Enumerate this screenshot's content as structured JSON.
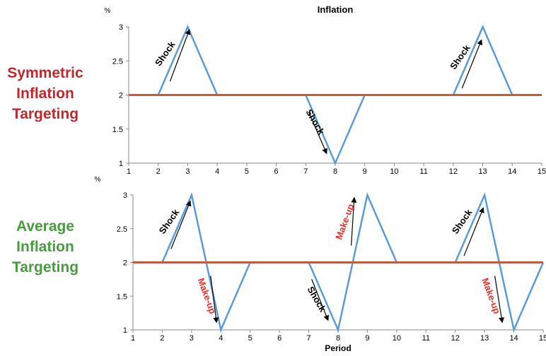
{
  "colors": {
    "actual": "#5b9bd5",
    "target": "#c55a3c",
    "axis": "#888888",
    "text": "#000000",
    "shock_text": "#000000",
    "makeup_text": "#e8302a",
    "symmetric_label": "#c0282d",
    "average_label": "#4a9a41"
  },
  "chart_data": [
    {
      "type": "line",
      "title": "Inflation",
      "side_label": [
        "Symmetric",
        "Inflation",
        "Targeting"
      ],
      "ylabel": "%",
      "xlabel": "",
      "xlim": [
        1,
        15
      ],
      "ylim": [
        1,
        3
      ],
      "x_ticks": [
        1,
        2,
        3,
        4,
        5,
        6,
        7,
        8,
        9,
        10,
        11,
        12,
        13,
        14,
        15
      ],
      "y_ticks": [
        "1",
        "1.5",
        "2",
        "2.5",
        "3"
      ],
      "series": [
        {
          "role": "actual",
          "x": [
            1,
            2,
            3,
            4,
            5,
            6,
            7,
            8,
            9,
            10,
            11,
            12,
            13,
            14,
            15
          ],
          "y": [
            2,
            2,
            3,
            2,
            2,
            2,
            2,
            1,
            2,
            2,
            2,
            2,
            3,
            2,
            2
          ]
        },
        {
          "role": "target",
          "x": [
            1,
            15
          ],
          "y": [
            2,
            2
          ]
        }
      ],
      "annotations": [
        {
          "text": "Shock",
          "kind": "shock",
          "x": 2.25,
          "y": 2.6,
          "rotate": -55,
          "arrow": {
            "x1": 2.4,
            "y1": 2.2,
            "x2": 3.05,
            "y2": 2.95
          }
        },
        {
          "text": "Shock",
          "kind": "shock",
          "x": 7.3,
          "y": 1.6,
          "rotate": 60,
          "arrow": {
            "x1": 7.1,
            "y1": 1.75,
            "x2": 7.7,
            "y2": 1.15
          }
        },
        {
          "text": "Shock",
          "kind": "shock",
          "x": 12.25,
          "y": 2.55,
          "rotate": -55,
          "arrow": {
            "x1": 12.3,
            "y1": 2.1,
            "x2": 12.95,
            "y2": 2.8
          }
        }
      ]
    },
    {
      "type": "line",
      "title": "",
      "side_label": [
        "Average",
        "Inflation",
        "Targeting"
      ],
      "ylabel": "%",
      "xlabel": "Period",
      "xlim": [
        1,
        15
      ],
      "ylim": [
        1,
        3
      ],
      "x_ticks": [
        1,
        2,
        3,
        4,
        5,
        6,
        7,
        8,
        9,
        10,
        11,
        12,
        13,
        14,
        15
      ],
      "y_ticks": [
        "1",
        "1.5",
        "2",
        "2.5",
        "3"
      ],
      "series": [
        {
          "role": "actual",
          "x": [
            1,
            2,
            3,
            4,
            5,
            6,
            7,
            8,
            9,
            10,
            11,
            12,
            13,
            14,
            15
          ],
          "y": [
            2,
            2,
            3,
            1,
            2,
            2,
            2,
            1,
            3,
            2,
            2,
            2,
            3,
            1,
            2
          ]
        },
        {
          "role": "target",
          "x": [
            1,
            15
          ],
          "y": [
            2,
            2
          ]
        }
      ],
      "annotations": [
        {
          "text": "Shock",
          "kind": "shock",
          "x": 2.25,
          "y": 2.6,
          "rotate": -55,
          "arrow": {
            "x1": 2.3,
            "y1": 2.2,
            "x2": 2.95,
            "y2": 2.9
          }
        },
        {
          "text": "Make-up",
          "kind": "makeup",
          "x": 3.5,
          "y": 1.5,
          "rotate": 70,
          "arrow": {
            "x1": 3.65,
            "y1": 1.8,
            "x2": 3.85,
            "y2": 1.12
          }
        },
        {
          "text": "Shock",
          "kind": "shock",
          "x": 7.25,
          "y": 1.45,
          "rotate": 60,
          "arrow": {
            "x1": 7.1,
            "y1": 1.75,
            "x2": 7.65,
            "y2": 1.15
          }
        },
        {
          "text": "Make-up",
          "kind": "makeup",
          "x": 8.25,
          "y": 2.6,
          "rotate": -70,
          "arrow": {
            "x1": 8.45,
            "y1": 2.25,
            "x2": 8.55,
            "y2": 2.95
          }
        },
        {
          "text": "Shock",
          "kind": "shock",
          "x": 12.25,
          "y": 2.6,
          "rotate": -55,
          "arrow": {
            "x1": 12.3,
            "y1": 2.1,
            "x2": 12.95,
            "y2": 2.8
          }
        },
        {
          "text": "Make-up",
          "kind": "makeup",
          "x": 13.2,
          "y": 1.5,
          "rotate": 70,
          "arrow": {
            "x1": 13.35,
            "y1": 1.8,
            "x2": 13.6,
            "y2": 1.12
          }
        }
      ]
    }
  ]
}
